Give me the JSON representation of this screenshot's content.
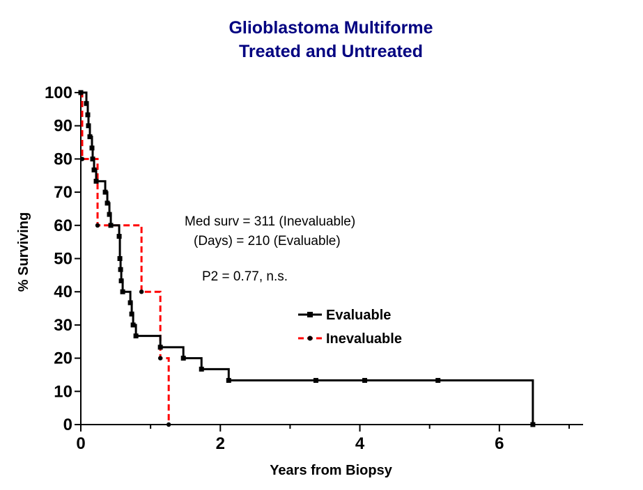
{
  "chart_data": {
    "type": "line",
    "title_lines": [
      "Glioblastoma Multiforme",
      "Treated and Untreated"
    ],
    "xlabel": "Years from Biopsy",
    "ylabel": "% Surviving",
    "xlim": [
      0,
      7.2
    ],
    "ylim": [
      0,
      100
    ],
    "x_ticks": [
      0,
      2,
      4,
      6
    ],
    "y_ticks": [
      0,
      10,
      20,
      30,
      40,
      50,
      60,
      70,
      80,
      90,
      100
    ],
    "grid": false,
    "legend_position": "right-middle",
    "annotations": [
      "Med surv =   311 (Inevaluable)",
      "(Days)  =   210 (Evaluable)",
      "P2 = 0.77, n.s."
    ],
    "series": [
      {
        "name": "Evaluable",
        "color": "#000000",
        "line_style": "solid",
        "marker": "square",
        "step_x": [
          0,
          0.08,
          0.1,
          0.11,
          0.13,
          0.16,
          0.17,
          0.19,
          0.22,
          0.35,
          0.38,
          0.41,
          0.43,
          0.55,
          0.56,
          0.57,
          0.58,
          0.6,
          0.71,
          0.73,
          0.75,
          0.79,
          1.14,
          1.47,
          1.73,
          2.12,
          6.48
        ],
        "step_y": [
          100,
          96.7,
          93.3,
          90,
          86.7,
          83.3,
          80,
          76.7,
          73.3,
          70,
          66.7,
          63.3,
          60,
          56.7,
          50,
          46.7,
          43.3,
          40,
          36.7,
          33.3,
          30,
          26.7,
          23.3,
          20,
          16.7,
          13.3,
          0
        ],
        "markers_x": [
          0,
          0.08,
          0.1,
          0.11,
          0.13,
          0.16,
          0.17,
          0.19,
          0.22,
          0.35,
          0.38,
          0.41,
          0.43,
          0.55,
          0.56,
          0.57,
          0.58,
          0.6,
          0.71,
          0.73,
          0.75,
          0.79,
          1.14,
          1.47,
          1.73,
          2.12,
          3.37,
          4.07,
          5.12,
          6.48
        ],
        "markers_y": [
          100,
          96.7,
          93.3,
          90,
          86.7,
          83.3,
          80,
          76.7,
          73.3,
          70,
          66.7,
          63.3,
          60,
          56.7,
          50,
          46.7,
          43.3,
          40,
          36.7,
          33.3,
          30,
          26.7,
          23.3,
          20,
          16.7,
          13.3,
          13.3,
          13.3,
          13.3,
          0
        ]
      },
      {
        "name": "Inevaluable",
        "color": "#ff0000",
        "line_style": "dashed",
        "marker": "dot",
        "step_x": [
          0,
          0.02,
          0.24,
          0.87,
          1.14,
          1.26
        ],
        "step_y": [
          100,
          80,
          60,
          40,
          20,
          0
        ],
        "markers_x": [
          0,
          0.02,
          0.24,
          0.87,
          1.14,
          1.26
        ],
        "markers_y": [
          100,
          80,
          60,
          40,
          20,
          0
        ]
      }
    ]
  }
}
